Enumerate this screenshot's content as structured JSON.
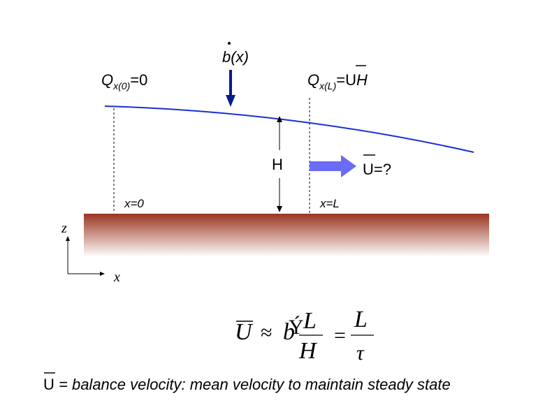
{
  "flux_left": {
    "symbol": "Q",
    "subscript": "x(0)",
    "value": "=0"
  },
  "flux_right": {
    "symbol": "Q",
    "subscript": "x(L)",
    "equals": "=",
    "U": "U",
    "H": "H"
  },
  "accumulation": {
    "b": "b",
    "arg": "(x)"
  },
  "thickness_label": "H",
  "velocity": {
    "U": "U",
    "value": "=?"
  },
  "position_left": "x=0",
  "position_right": "x=L",
  "axes": {
    "z": "z",
    "x": "x"
  },
  "formula": {
    "lhs": "U",
    "approx": "≈",
    "b": "b",
    "b_garble": "Ý",
    "frac1_num": "L",
    "frac1_den": "H",
    "equals": "=",
    "frac2_num": "L",
    "frac2_den": "τ"
  },
  "caption": {
    "U": "U",
    "text": " = balance velocity: mean velocity to maintain steady state"
  },
  "colors": {
    "ice_surface": "#1a2fd6",
    "accumulation_arrow": "#0a1a8c",
    "velocity_arrow": "#6b6bf5",
    "bed_top": "#9a3520",
    "bed_bottom": "#ffffff"
  }
}
